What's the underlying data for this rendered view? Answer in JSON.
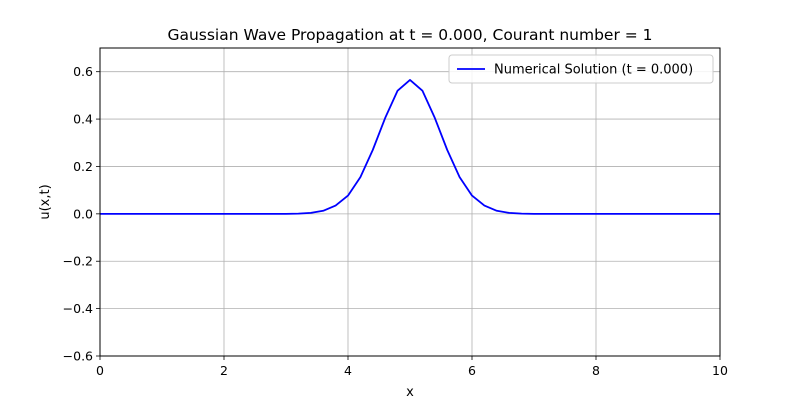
{
  "chart_data": {
    "type": "line",
    "title": "Gaussian Wave Propagation at t = 0.000, Courant number = 1",
    "xlabel": "x",
    "ylabel": "u(x,t)",
    "xlim": [
      0,
      10
    ],
    "ylim": [
      -0.6,
      0.7
    ],
    "xticks": [
      0,
      2,
      4,
      6,
      8,
      10
    ],
    "xtick_labels": [
      "0",
      "2",
      "4",
      "6",
      "8",
      "10"
    ],
    "yticks": [
      -0.6,
      -0.4,
      -0.2,
      0.0,
      0.2,
      0.4,
      0.6
    ],
    "ytick_labels": [
      "−0.6",
      "−0.4",
      "−0.2",
      "0.0",
      "0.2",
      "0.4",
      "0.6"
    ],
    "grid": true,
    "legend": {
      "position": "top-right"
    },
    "series": [
      {
        "name": "Numerical Solution (t = 0.000)",
        "color": "#0000ff",
        "x": [
          0.0,
          0.2,
          0.4,
          0.6,
          0.8,
          1.0,
          1.2,
          1.4,
          1.6,
          1.8,
          2.0,
          2.2,
          2.4,
          2.6,
          2.8,
          3.0,
          3.2,
          3.4,
          3.6,
          3.8,
          4.0,
          4.2,
          4.4,
          4.6,
          4.8,
          5.0,
          5.2,
          5.4,
          5.6,
          5.8,
          6.0,
          6.2,
          6.4,
          6.6,
          6.8,
          7.0,
          7.2,
          7.4,
          7.6,
          7.8,
          8.0,
          8.2,
          8.4,
          8.6,
          8.8,
          9.0,
          9.2,
          9.4,
          9.6,
          9.8,
          10.0
        ],
        "y": [
          0,
          0,
          0,
          0,
          0,
          0,
          0,
          0,
          0,
          0,
          0,
          0,
          0,
          0,
          0,
          0,
          0.001,
          0.004,
          0.013,
          0.035,
          0.077,
          0.155,
          0.27,
          0.405,
          0.52,
          0.565,
          0.52,
          0.405,
          0.27,
          0.155,
          0.077,
          0.035,
          0.013,
          0.004,
          0.001,
          0,
          0,
          0,
          0,
          0,
          0,
          0,
          0,
          0,
          0,
          0,
          0,
          0,
          0,
          0,
          0
        ]
      }
    ]
  }
}
